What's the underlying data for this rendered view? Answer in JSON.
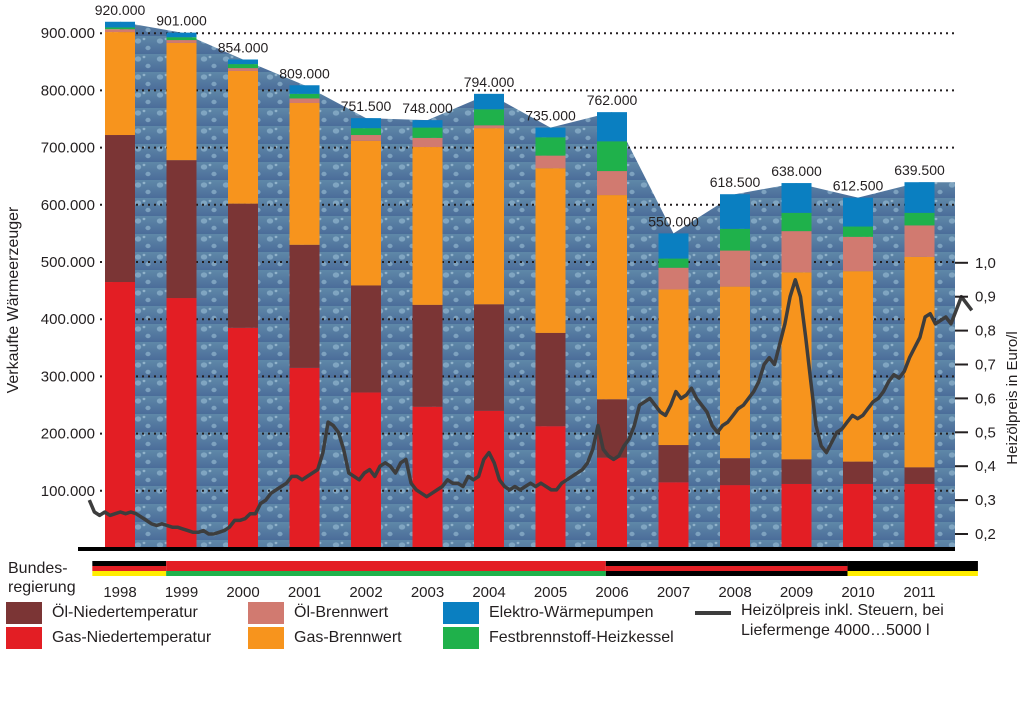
{
  "chart_data": {
    "type": "bar",
    "categories": [
      "1998",
      "1999",
      "2000",
      "2001",
      "2002",
      "2003",
      "2004",
      "2005",
      "2006",
      "2007",
      "2008",
      "2009",
      "2010",
      "2011"
    ],
    "totals_labels": [
      "920.000",
      "901.000",
      "854.000",
      "809.000",
      "751.500",
      "748.000",
      "794.000",
      "735.000",
      "762.000",
      "550.000",
      "618.500",
      "638.000",
      "612.500",
      "639.500"
    ],
    "series": [
      {
        "name": "Gas-Niedertemperatur",
        "color": "#e31e24",
        "values": [
          465000,
          437000,
          385000,
          315000,
          272000,
          247000,
          240000,
          213000,
          158000,
          115000,
          110000,
          112000,
          112000,
          112000
        ]
      },
      {
        "name": "Öl-Niedertemperatur",
        "color": "#7b3535",
        "values": [
          257000,
          241000,
          217000,
          215000,
          187000,
          178000,
          186000,
          163000,
          102000,
          65000,
          47000,
          43000,
          39000,
          29000
        ]
      },
      {
        "name": "Gas-Brennwert",
        "color": "#f7941d",
        "values": [
          180000,
          205000,
          232000,
          248000,
          253000,
          276000,
          308000,
          288000,
          357000,
          272000,
          300000,
          327000,
          333000,
          368000
        ]
      },
      {
        "name": "Öl-Brennwert",
        "color": "#d17a70",
        "values": [
          5000,
          5000,
          5000,
          8000,
          10000,
          16000,
          5000,
          22000,
          42000,
          38000,
          63000,
          72000,
          60000,
          55000
        ]
      },
      {
        "name": "Festbrennstoff-Heizkessel",
        "color": "#1fb14b",
        "values": [
          3000,
          5000,
          7000,
          8000,
          12000,
          18000,
          28000,
          32000,
          52000,
          16000,
          38000,
          32000,
          18000,
          22000
        ]
      },
      {
        "name": "Elektro-Wärmepumpen",
        "color": "#0a7fc1",
        "values": [
          10000,
          8000,
          8000,
          15000,
          17500,
          13000,
          27000,
          17000,
          51000,
          44000,
          60500,
          52000,
          50500,
          53500
        ]
      }
    ],
    "area_total": [
      920000,
      901000,
      854000,
      809000,
      751500,
      748000,
      794000,
      735000,
      762000,
      550000,
      618500,
      638000,
      612500,
      639500
    ],
    "oil_price_line": {
      "name": "Heizölpreis inkl. Steuern, bei Liefermenge 4000…5000 l",
      "x_start": 1997.5,
      "x_end": 2011.85,
      "values": [
        0.3,
        0.265,
        0.255,
        0.265,
        0.255,
        0.26,
        0.265,
        0.26,
        0.265,
        0.26,
        0.25,
        0.24,
        0.23,
        0.225,
        0.23,
        0.225,
        0.22,
        0.22,
        0.215,
        0.21,
        0.205,
        0.205,
        0.21,
        0.2,
        0.2,
        0.205,
        0.21,
        0.22,
        0.24,
        0.24,
        0.245,
        0.26,
        0.26,
        0.29,
        0.3,
        0.32,
        0.33,
        0.34,
        0.35,
        0.37,
        0.37,
        0.36,
        0.37,
        0.38,
        0.39,
        0.44,
        0.53,
        0.52,
        0.5,
        0.45,
        0.38,
        0.37,
        0.36,
        0.38,
        0.39,
        0.37,
        0.4,
        0.41,
        0.4,
        0.38,
        0.41,
        0.42,
        0.35,
        0.33,
        0.32,
        0.31,
        0.32,
        0.33,
        0.34,
        0.36,
        0.35,
        0.35,
        0.34,
        0.37,
        0.36,
        0.37,
        0.42,
        0.44,
        0.41,
        0.36,
        0.34,
        0.33,
        0.34,
        0.33,
        0.34,
        0.35,
        0.34,
        0.35,
        0.34,
        0.33,
        0.33,
        0.35,
        0.36,
        0.37,
        0.38,
        0.39,
        0.41,
        0.45,
        0.52,
        0.45,
        0.43,
        0.42,
        0.43,
        0.46,
        0.48,
        0.52,
        0.58,
        0.59,
        0.6,
        0.58,
        0.56,
        0.55,
        0.58,
        0.62,
        0.6,
        0.61,
        0.63,
        0.6,
        0.58,
        0.56,
        0.52,
        0.5,
        0.52,
        0.53,
        0.55,
        0.57,
        0.58,
        0.6,
        0.62,
        0.65,
        0.7,
        0.72,
        0.7,
        0.76,
        0.82,
        0.9,
        0.95,
        0.9,
        0.78,
        0.65,
        0.52,
        0.46,
        0.44,
        0.47,
        0.5,
        0.51,
        0.53,
        0.55,
        0.54,
        0.55,
        0.57,
        0.59,
        0.6,
        0.62,
        0.65,
        0.67,
        0.66,
        0.68,
        0.72,
        0.75,
        0.78,
        0.84,
        0.85,
        0.82,
        0.83,
        0.84,
        0.82,
        0.86,
        0.9,
        0.88,
        0.86
      ],
      "color": "#3d3d3d"
    },
    "y_left": {
      "label": "Verkaufte  Wärmeerzeuger",
      "min": 0,
      "max": 950000,
      "ticks": [
        "100.000",
        "200.000",
        "300.000",
        "400.000",
        "500.000",
        "600.000",
        "700.000",
        "800.000",
        "900.000"
      ]
    },
    "y_right": {
      "label": "Heizölpreis in Euro/l",
      "ticks": [
        "0,2",
        "0,3",
        "0,4",
        "0,5",
        "0,6",
        "0,7",
        "0,8",
        "0,9",
        "1,0"
      ]
    },
    "grid": "dotted-horizontal",
    "bundesregierung": {
      "label_line1": "Bundes-",
      "label_line2": "regierung",
      "periods": [
        {
          "from": 1997.55,
          "to": 1998.75,
          "top": "#000000",
          "mid": "#e31e24",
          "bot": "#ffed00"
        },
        {
          "from": 1998.75,
          "to": 2005.9,
          "top": "#e31e24",
          "mid": "#e31e24",
          "bot": "#1fb14b"
        },
        {
          "from": 2005.9,
          "to": 2009.83,
          "top": "#000000",
          "mid": "#e31e24",
          "bot": "#000000"
        },
        {
          "from": 2009.83,
          "to": 2011.95,
          "top": "#000000",
          "mid": "#000000",
          "bot": "#ffed00"
        }
      ]
    }
  },
  "legend": [
    {
      "label": "Öl-Niedertemperatur",
      "color": "#7b3535"
    },
    {
      "label": "Gas-Niedertemperatur",
      "color": "#e31e24"
    },
    {
      "label": "Öl-Brennwert",
      "color": "#d17a70"
    },
    {
      "label": "Gas-Brennwert",
      "color": "#f7941d"
    },
    {
      "label": "Elektro-Wärmepumpen",
      "color": "#0a7fc1"
    },
    {
      "label": "Festbrennstoff-Heizkessel",
      "color": "#1fb14b"
    },
    {
      "label_line1": "Heizölpreis inkl. Steuern, bei",
      "label_line2": "Liefermenge 4000…5000 l"
    }
  ]
}
